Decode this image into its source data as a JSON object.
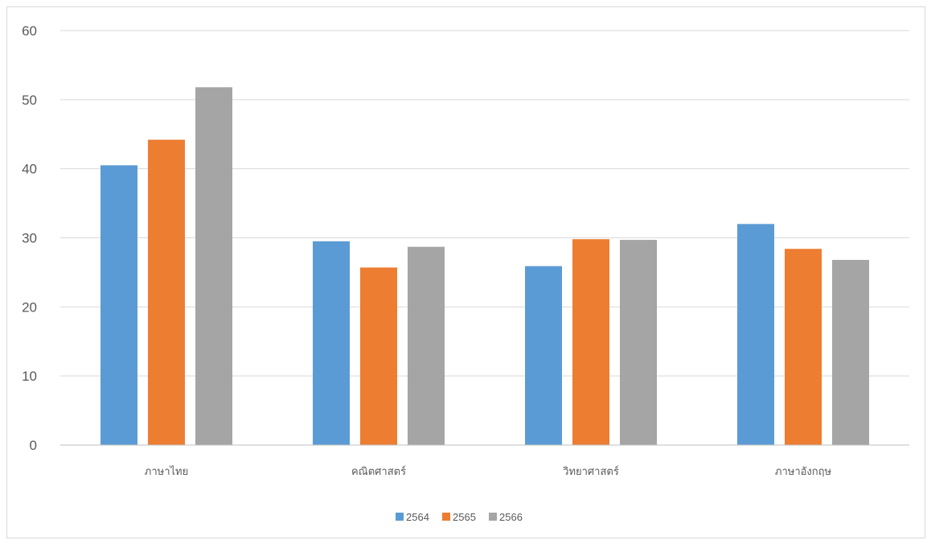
{
  "chart_data": {
    "type": "bar",
    "categories": [
      "ภาษาไทย",
      "คณิตศาสตร์",
      "วิทยาศาสตร์",
      "ภาษาอังกฤษ"
    ],
    "series": [
      {
        "name": "2564",
        "values": [
          40.5,
          29.5,
          25.9,
          32.0
        ],
        "color": "#5b9bd5"
      },
      {
        "name": "2565",
        "values": [
          44.2,
          25.7,
          29.8,
          28.4
        ],
        "color": "#ed7d31"
      },
      {
        "name": "2566",
        "values": [
          51.8,
          28.7,
          29.7,
          26.8
        ],
        "color": "#a5a5a5"
      }
    ],
    "title": "",
    "xlabel": "",
    "ylabel": "",
    "ylim": [
      0,
      60
    ],
    "yticks": [
      "0",
      "10",
      "20",
      "30",
      "40",
      "50",
      "60"
    ],
    "grid": true,
    "legend_position": "bottom"
  }
}
